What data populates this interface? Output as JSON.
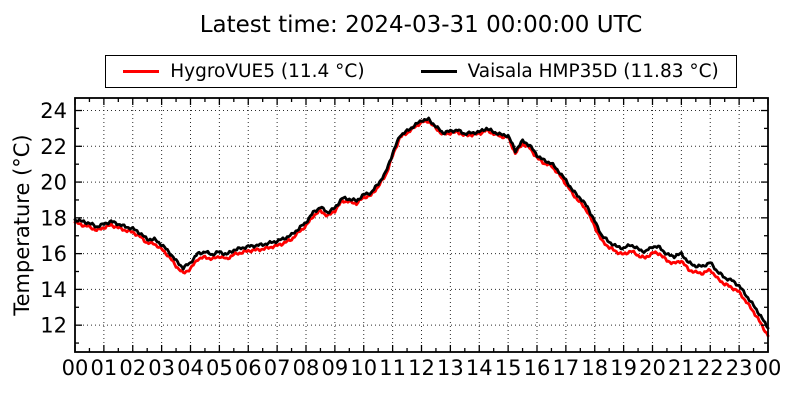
{
  "figure": {
    "title": "Latest time: 2024-03-31 00:00:00 UTC"
  },
  "legend": {
    "items": [
      {
        "label": "HygroVUE5 (11.4 °C)",
        "color": "#ff0000"
      },
      {
        "label": "Vaisala HMP35D (11.83 °C)",
        "color": "#000000"
      }
    ]
  },
  "chart_data": {
    "type": "line",
    "title": "Latest time: 2024-03-31 00:00:00 UTC",
    "xlabel": "",
    "ylabel": "Temperature (°C)",
    "x_unit": "hour of day (UTC)",
    "xlim": [
      0,
      24
    ],
    "ylim": [
      10.5,
      24.7
    ],
    "grid": true,
    "legend_position": "top outside",
    "x_tick_labels": [
      "00",
      "01",
      "02",
      "03",
      "04",
      "05",
      "06",
      "07",
      "08",
      "09",
      "10",
      "11",
      "12",
      "13",
      "14",
      "15",
      "16",
      "17",
      "18",
      "19",
      "20",
      "21",
      "22",
      "23",
      "00"
    ],
    "y_ticks": [
      12,
      14,
      16,
      18,
      20,
      22,
      24
    ],
    "x_start_hours": 0,
    "x_step_hours": 0.25,
    "series": [
      {
        "name": "HygroVUE5",
        "legend_label": "HygroVUE5 (11.4 °C)",
        "color": "#ff0000",
        "latest_value_c": 11.4,
        "values": [
          17.75,
          17.6,
          17.5,
          17.3,
          17.45,
          17.6,
          17.45,
          17.3,
          17.2,
          16.95,
          16.6,
          16.55,
          16.25,
          15.85,
          15.3,
          14.9,
          15.15,
          15.7,
          15.8,
          15.7,
          15.85,
          15.7,
          15.95,
          16.05,
          16.15,
          16.2,
          16.25,
          16.35,
          16.45,
          16.6,
          16.8,
          17.2,
          17.55,
          18.1,
          18.4,
          18.1,
          18.4,
          18.95,
          18.9,
          18.8,
          19.15,
          19.25,
          19.75,
          20.35,
          21.45,
          22.5,
          22.75,
          23.05,
          23.35,
          23.4,
          23.0,
          22.65,
          22.75,
          22.8,
          22.6,
          22.65,
          22.7,
          22.9,
          22.7,
          22.55,
          22.5,
          21.6,
          22.15,
          21.9,
          21.35,
          21.05,
          20.9,
          20.45,
          19.9,
          19.3,
          18.85,
          18.35,
          17.5,
          16.7,
          16.35,
          16.1,
          15.95,
          16.15,
          15.9,
          15.75,
          16.05,
          16.0,
          15.6,
          15.45,
          15.6,
          15.1,
          14.95,
          14.9,
          15.1,
          14.6,
          14.3,
          14.1,
          13.85,
          13.3,
          12.75,
          12.1,
          11.4
        ]
      },
      {
        "name": "Vaisala HMP35D",
        "legend_label": "Vaisala HMP35D (11.83 °C)",
        "color": "#000000",
        "latest_value_c": 11.83,
        "values": [
          17.9,
          17.8,
          17.7,
          17.5,
          17.65,
          17.8,
          17.65,
          17.5,
          17.4,
          17.15,
          16.8,
          16.8,
          16.5,
          16.1,
          15.6,
          15.2,
          15.5,
          16.0,
          16.1,
          15.95,
          16.1,
          15.95,
          16.2,
          16.3,
          16.4,
          16.45,
          16.5,
          16.6,
          16.7,
          16.85,
          17.05,
          17.4,
          17.75,
          18.3,
          18.6,
          18.3,
          18.55,
          19.1,
          19.05,
          18.95,
          19.3,
          19.4,
          19.9,
          20.5,
          21.6,
          22.6,
          22.85,
          23.15,
          23.45,
          23.5,
          23.1,
          22.75,
          22.85,
          22.9,
          22.7,
          22.75,
          22.8,
          23.0,
          22.8,
          22.65,
          22.6,
          21.75,
          22.3,
          22.05,
          21.5,
          21.2,
          21.05,
          20.6,
          20.1,
          19.5,
          19.1,
          18.6,
          17.8,
          17.0,
          16.65,
          16.4,
          16.3,
          16.5,
          16.25,
          16.1,
          16.4,
          16.35,
          15.95,
          15.85,
          16.0,
          15.5,
          15.3,
          15.3,
          15.5,
          15.0,
          14.65,
          14.5,
          14.2,
          13.65,
          13.1,
          12.5,
          11.83
        ]
      }
    ]
  }
}
